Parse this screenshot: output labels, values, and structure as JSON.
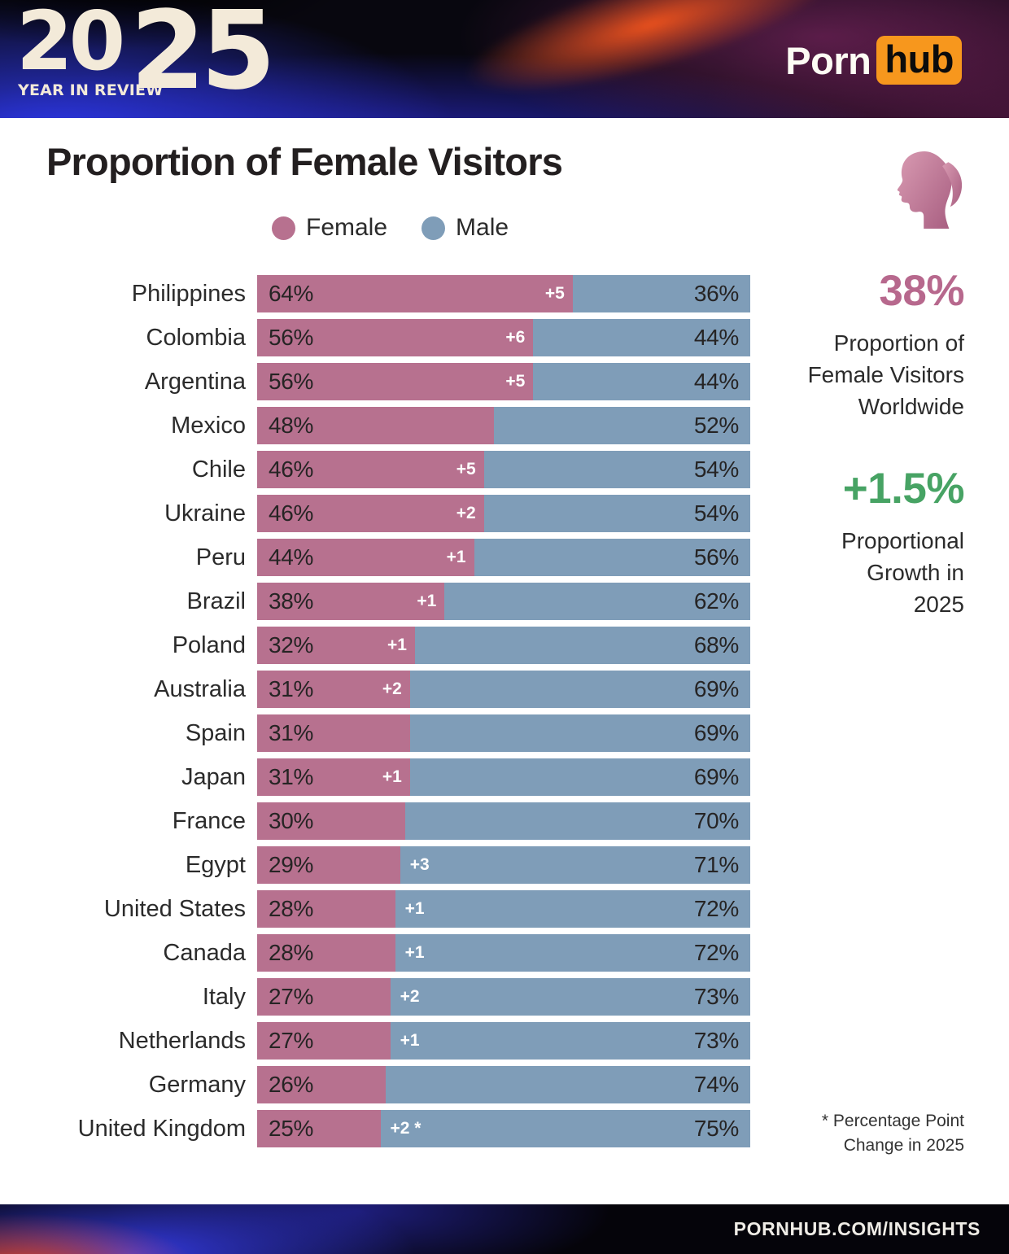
{
  "header": {
    "year_first": "20",
    "year_second": "25",
    "tagline": "YEAR IN REVIEW",
    "brand_first": "Porn",
    "brand_second": "hub"
  },
  "title": "Proportion of Female Visitors",
  "legend": {
    "female": "Female",
    "male": "Male"
  },
  "colors": {
    "female_bar": "#b7718f",
    "male_bar": "#7f9db8",
    "accent_pink": "#b7688d",
    "accent_green": "#47a364",
    "brand_orange": "#f7971d",
    "icon_pink_light": "#d99bb2",
    "icon_pink_dark": "#aa6183"
  },
  "chart_data": {
    "type": "bar",
    "orientation": "horizontal",
    "stacked": true,
    "unit": "%",
    "title": "Proportion of Female Visitors",
    "legend_entries": [
      "Female",
      "Male"
    ],
    "legend_position": "top",
    "axes": "none (values labeled on bars)",
    "categories": [
      "Philippines",
      "Colombia",
      "Argentina",
      "Mexico",
      "Chile",
      "Ukraine",
      "Peru",
      "Brazil",
      "Poland",
      "Australia",
      "Spain",
      "Japan",
      "France",
      "Egypt",
      "United States",
      "Canada",
      "Italy",
      "Netherlands",
      "Germany",
      "United Kingdom"
    ],
    "series": [
      {
        "name": "Female",
        "color": "#b7718f",
        "values": [
          64,
          56,
          56,
          48,
          46,
          46,
          44,
          38,
          32,
          31,
          31,
          31,
          30,
          29,
          28,
          28,
          27,
          27,
          26,
          25
        ]
      },
      {
        "name": "Male",
        "color": "#7f9db8",
        "values": [
          36,
          44,
          44,
          52,
          54,
          54,
          56,
          62,
          68,
          69,
          69,
          69,
          70,
          71,
          72,
          72,
          73,
          73,
          74,
          75
        ]
      }
    ],
    "change_labels": [
      "+5",
      "+6",
      "+5",
      null,
      "+5",
      "+2",
      "+1",
      "+1",
      "+1",
      "+2",
      null,
      "+1",
      null,
      "+3",
      "+1",
      "+1",
      "+2",
      "+1",
      null,
      "+2 *"
    ],
    "change_sides": [
      "female",
      "female",
      "female",
      null,
      "female",
      "female",
      "female",
      "female",
      "female",
      "female",
      null,
      "female",
      null,
      "male",
      "male",
      "male",
      "male",
      "male",
      null,
      "male"
    ]
  },
  "sidebar": {
    "stat1_value": "38%",
    "stat1_label": "Proportion of Female Visitors Worldwide",
    "stat2_value": "+1.5%",
    "stat2_label": "Proportional Growth in 2025"
  },
  "footnote": "* Percentage Point Change in 2025",
  "footer": {
    "url": "PORNHUB.COM/INSIGHTS"
  }
}
